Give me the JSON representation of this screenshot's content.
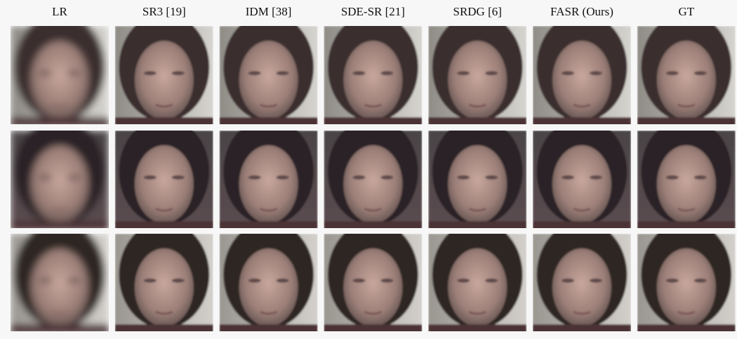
{
  "figure": {
    "columns": [
      "LR",
      "SR3 [19]",
      "IDM [38]",
      "SDE-SR [21]",
      "SRDG [6]",
      "FASR (Ours)",
      "GT"
    ]
  }
}
